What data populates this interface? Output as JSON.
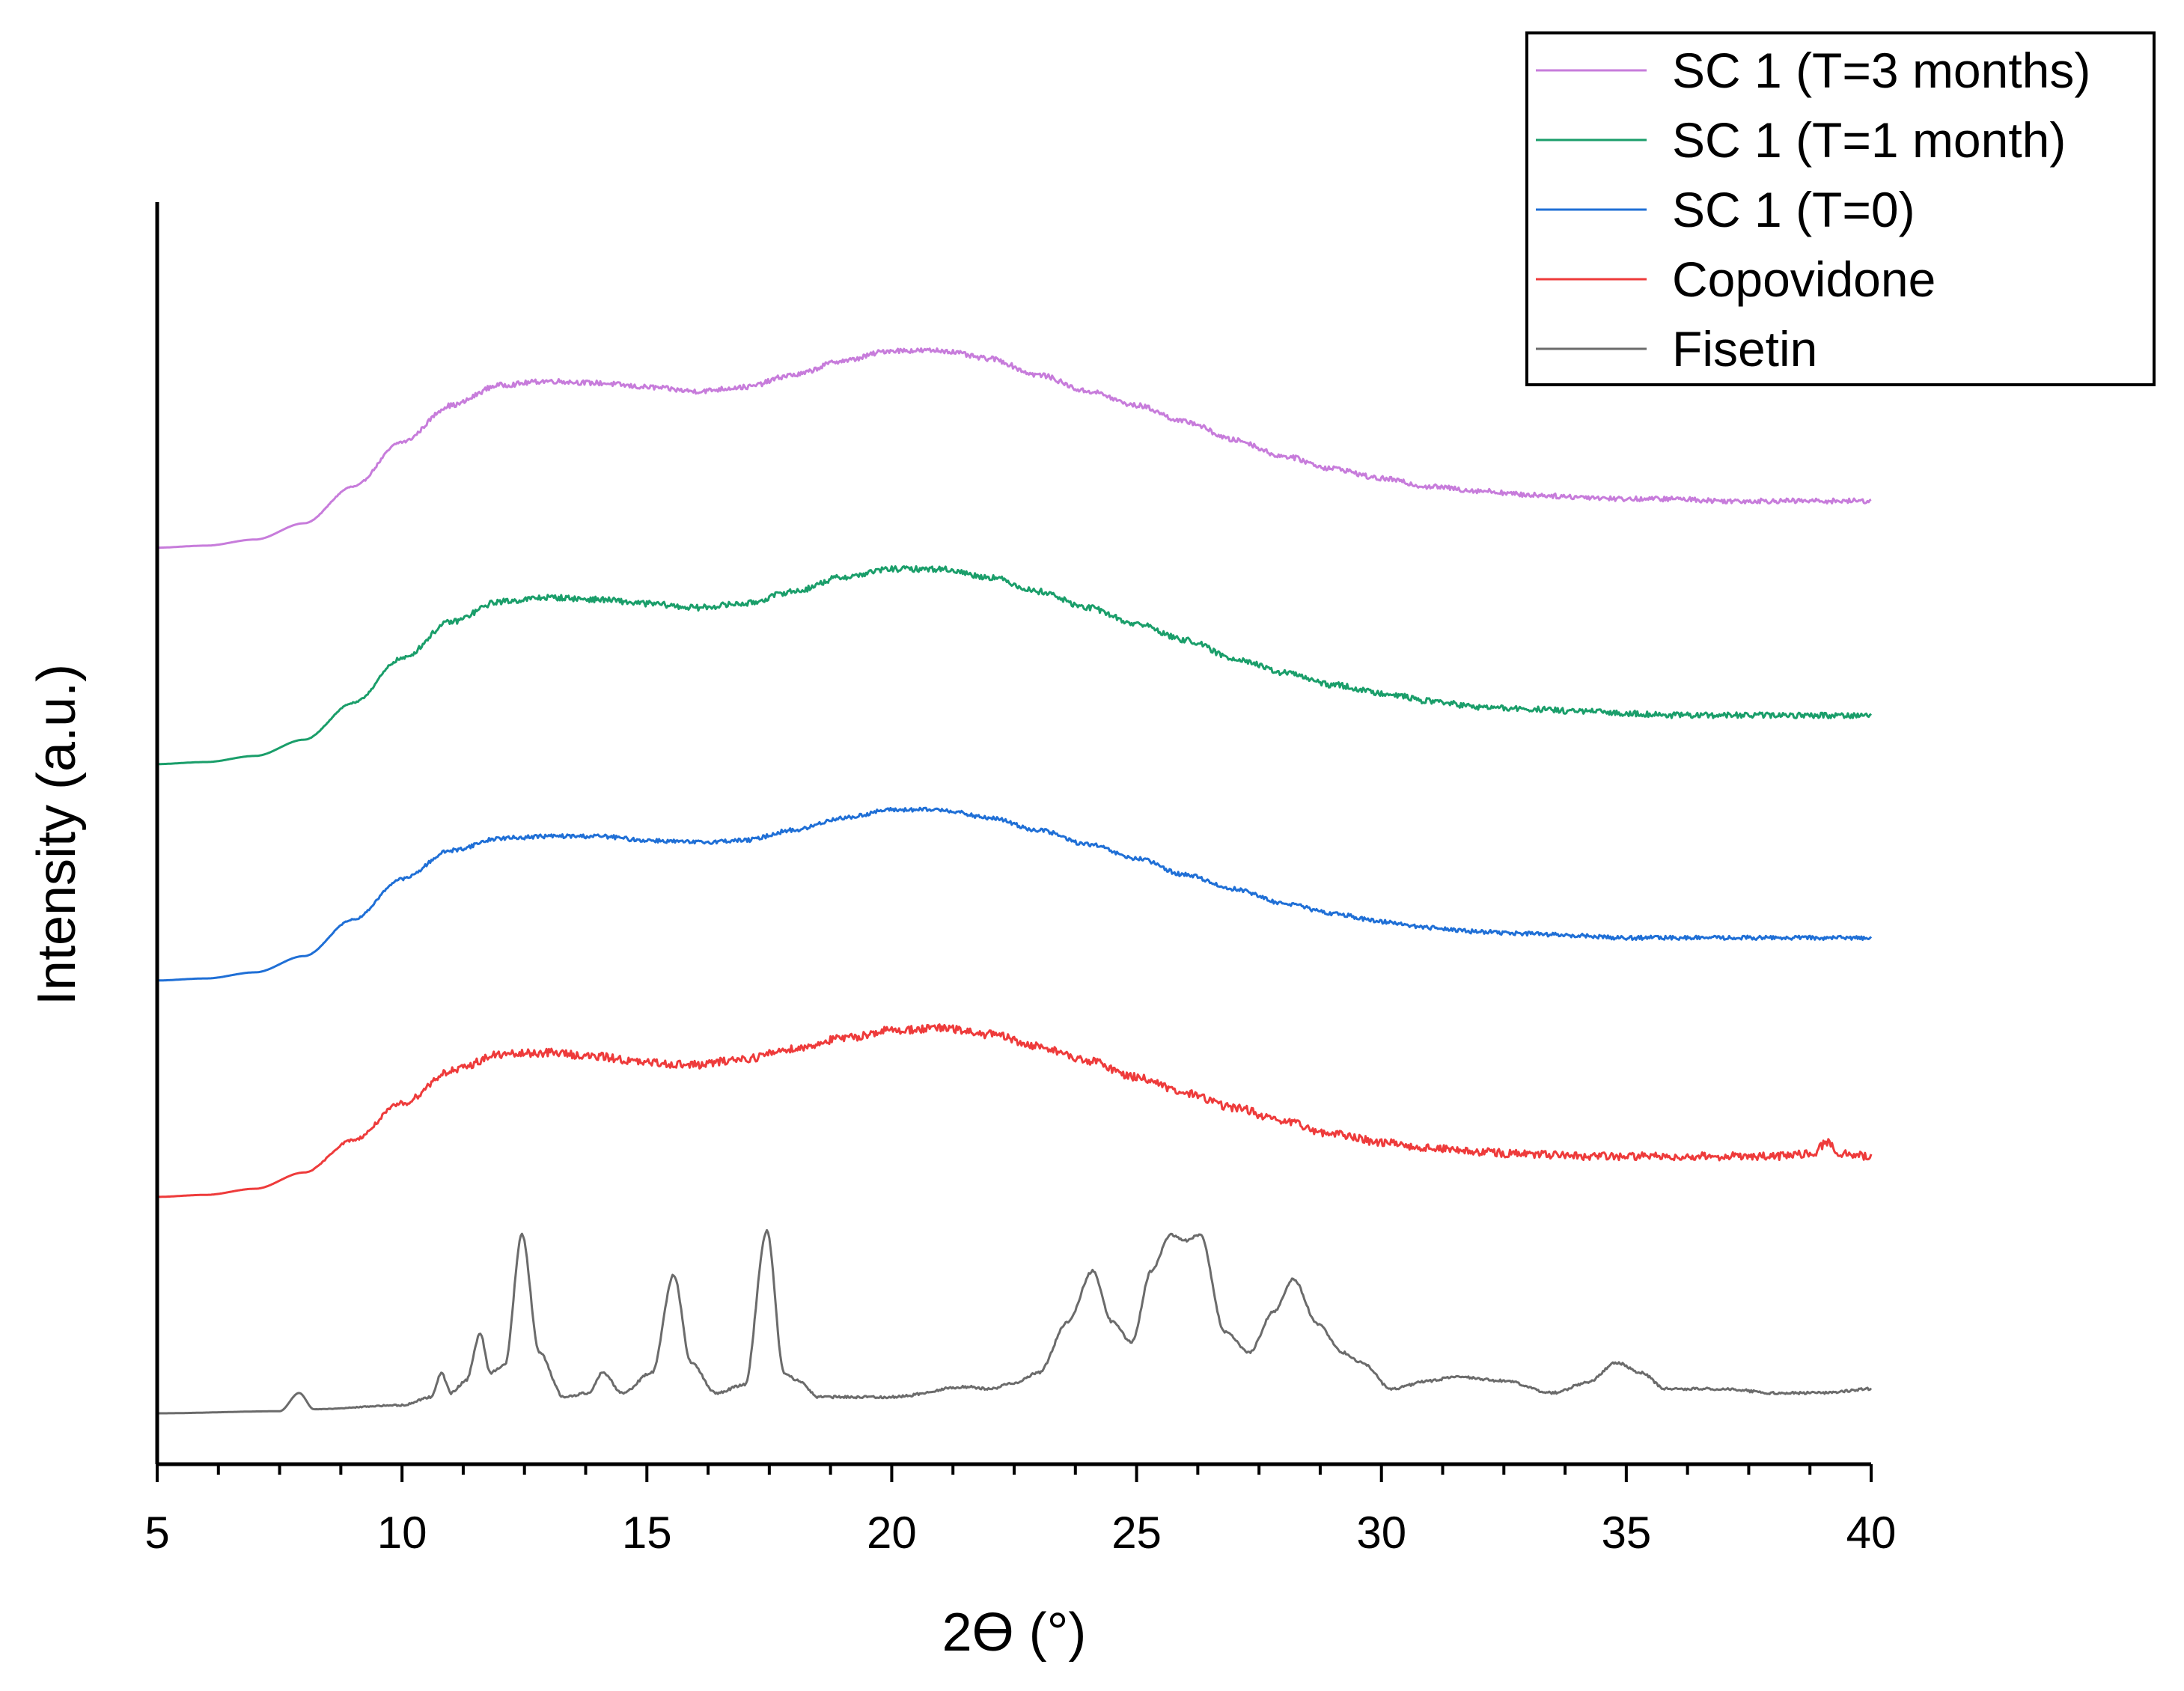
{
  "chart_data": {
    "type": "line",
    "title": "",
    "xlabel": "2ϴ (°)",
    "ylabel": "Intensity (a.u.)",
    "xlim": [
      5,
      40
    ],
    "xticks": [
      5,
      10,
      15,
      20,
      25,
      30,
      35,
      40
    ],
    "y_ticks_shown": false,
    "legend_position": "top-right",
    "series": [
      {
        "name": "SC 1 (T=3 months)",
        "color": "#c77cdb",
        "offset": 4,
        "noise": 0.012,
        "points": [
          [
            5,
            0.0
          ],
          [
            6,
            0.01
          ],
          [
            7,
            0.04
          ],
          [
            8,
            0.12
          ],
          [
            9,
            0.3
          ],
          [
            10,
            0.52
          ],
          [
            11,
            0.7
          ],
          [
            12,
            0.8
          ],
          [
            13,
            0.82
          ],
          [
            14,
            0.81
          ],
          [
            15,
            0.79
          ],
          [
            16,
            0.77
          ],
          [
            17,
            0.79
          ],
          [
            18,
            0.85
          ],
          [
            19,
            0.92
          ],
          [
            20,
            0.97
          ],
          [
            21,
            0.97
          ],
          [
            22,
            0.93
          ],
          [
            23,
            0.85
          ],
          [
            24,
            0.77
          ],
          [
            25,
            0.7
          ],
          [
            26,
            0.62
          ],
          [
            27,
            0.53
          ],
          [
            28,
            0.45
          ],
          [
            29,
            0.39
          ],
          [
            30,
            0.34
          ],
          [
            31,
            0.3
          ],
          [
            32,
            0.28
          ],
          [
            33,
            0.26
          ],
          [
            34,
            0.25
          ],
          [
            35,
            0.24
          ],
          [
            36,
            0.24
          ],
          [
            37,
            0.23
          ],
          [
            38,
            0.23
          ],
          [
            39,
            0.23
          ],
          [
            40,
            0.23
          ]
        ]
      },
      {
        "name": "SC 1 (T=1 month)",
        "color": "#1a9e6a",
        "offset": 3,
        "noise": 0.014,
        "points": [
          [
            5,
            0.0
          ],
          [
            6,
            0.01
          ],
          [
            7,
            0.04
          ],
          [
            8,
            0.12
          ],
          [
            9,
            0.3
          ],
          [
            10,
            0.52
          ],
          [
            11,
            0.7
          ],
          [
            12,
            0.8
          ],
          [
            13,
            0.82
          ],
          [
            14,
            0.81
          ],
          [
            15,
            0.79
          ],
          [
            16,
            0.77
          ],
          [
            17,
            0.79
          ],
          [
            18,
            0.85
          ],
          [
            19,
            0.92
          ],
          [
            20,
            0.96
          ],
          [
            21,
            0.96
          ],
          [
            22,
            0.92
          ],
          [
            23,
            0.85
          ],
          [
            24,
            0.77
          ],
          [
            25,
            0.69
          ],
          [
            26,
            0.61
          ],
          [
            27,
            0.52
          ],
          [
            28,
            0.45
          ],
          [
            29,
            0.39
          ],
          [
            30,
            0.35
          ],
          [
            31,
            0.31
          ],
          [
            32,
            0.28
          ],
          [
            33,
            0.27
          ],
          [
            34,
            0.26
          ],
          [
            35,
            0.25
          ],
          [
            36,
            0.24
          ],
          [
            37,
            0.24
          ],
          [
            38,
            0.24
          ],
          [
            39,
            0.24
          ],
          [
            40,
            0.24
          ]
        ]
      },
      {
        "name": "SC 1 (T=0)",
        "color": "#1f6fd6",
        "offset": 2,
        "noise": 0.01,
        "points": [
          [
            5,
            0.0
          ],
          [
            6,
            0.01
          ],
          [
            7,
            0.04
          ],
          [
            8,
            0.12
          ],
          [
            9,
            0.3
          ],
          [
            10,
            0.5
          ],
          [
            11,
            0.64
          ],
          [
            12,
            0.7
          ],
          [
            13,
            0.71
          ],
          [
            14,
            0.71
          ],
          [
            15,
            0.69
          ],
          [
            16,
            0.68
          ],
          [
            17,
            0.69
          ],
          [
            18,
            0.74
          ],
          [
            19,
            0.8
          ],
          [
            20,
            0.84
          ],
          [
            21,
            0.84
          ],
          [
            22,
            0.8
          ],
          [
            23,
            0.74
          ],
          [
            24,
            0.67
          ],
          [
            25,
            0.6
          ],
          [
            26,
            0.52
          ],
          [
            27,
            0.45
          ],
          [
            28,
            0.38
          ],
          [
            29,
            0.33
          ],
          [
            30,
            0.29
          ],
          [
            31,
            0.26
          ],
          [
            32,
            0.24
          ],
          [
            33,
            0.23
          ],
          [
            34,
            0.22
          ],
          [
            35,
            0.21
          ],
          [
            36,
            0.21
          ],
          [
            37,
            0.21
          ],
          [
            38,
            0.21
          ],
          [
            39,
            0.21
          ],
          [
            40,
            0.21
          ]
        ]
      },
      {
        "name": "Copovidone",
        "color": "#ee3b3b",
        "offset": 1,
        "noise": 0.02,
        "points": [
          [
            5,
            0.0
          ],
          [
            6,
            0.01
          ],
          [
            7,
            0.04
          ],
          [
            8,
            0.12
          ],
          [
            9,
            0.28
          ],
          [
            10,
            0.46
          ],
          [
            11,
            0.62
          ],
          [
            12,
            0.7
          ],
          [
            13,
            0.71
          ],
          [
            14,
            0.69
          ],
          [
            15,
            0.66
          ],
          [
            16,
            0.65
          ],
          [
            17,
            0.68
          ],
          [
            18,
            0.73
          ],
          [
            19,
            0.78
          ],
          [
            20,
            0.82
          ],
          [
            21,
            0.83
          ],
          [
            22,
            0.8
          ],
          [
            23,
            0.74
          ],
          [
            24,
            0.67
          ],
          [
            25,
            0.59
          ],
          [
            26,
            0.51
          ],
          [
            27,
            0.44
          ],
          [
            28,
            0.37
          ],
          [
            29,
            0.31
          ],
          [
            30,
            0.27
          ],
          [
            31,
            0.24
          ],
          [
            32,
            0.22
          ],
          [
            33,
            0.21
          ],
          [
            34,
            0.2
          ],
          [
            35,
            0.2
          ],
          [
            36,
            0.2
          ],
          [
            37,
            0.2
          ],
          [
            38,
            0.2
          ],
          [
            38.8,
            0.21
          ],
          [
            39.1,
            0.27
          ],
          [
            39.4,
            0.21
          ],
          [
            40,
            0.2
          ]
        ]
      },
      {
        "name": "Fisetin",
        "color": "#6b6b6b",
        "offset": 0,
        "noise": 0.006,
        "points": [
          [
            5,
            0.0
          ],
          [
            7.5,
            0.01
          ],
          [
            7.9,
            0.1
          ],
          [
            8.2,
            0.02
          ],
          [
            10,
            0.04
          ],
          [
            10.6,
            0.08
          ],
          [
            10.8,
            0.2
          ],
          [
            11.0,
            0.1
          ],
          [
            11.3,
            0.16
          ],
          [
            11.6,
            0.39
          ],
          [
            11.8,
            0.2
          ],
          [
            12.1,
            0.24
          ],
          [
            12.45,
            0.88
          ],
          [
            12.8,
            0.3
          ],
          [
            13.3,
            0.08
          ],
          [
            13.8,
            0.1
          ],
          [
            14.1,
            0.2
          ],
          [
            14.5,
            0.1
          ],
          [
            15.1,
            0.2
          ],
          [
            15.55,
            0.68
          ],
          [
            15.9,
            0.25
          ],
          [
            16.4,
            0.1
          ],
          [
            17.0,
            0.14
          ],
          [
            17.45,
            0.9
          ],
          [
            17.8,
            0.2
          ],
          [
            18.1,
            0.16
          ],
          [
            18.5,
            0.08
          ],
          [
            20,
            0.08
          ],
          [
            21.5,
            0.13
          ],
          [
            22,
            0.12
          ],
          [
            22.5,
            0.15
          ],
          [
            23,
            0.2
          ],
          [
            23.6,
            0.45
          ],
          [
            24.1,
            0.7
          ],
          [
            24.5,
            0.45
          ],
          [
            24.9,
            0.35
          ],
          [
            25.3,
            0.7
          ],
          [
            25.7,
            0.88
          ],
          [
            26.0,
            0.85
          ],
          [
            26.3,
            0.88
          ],
          [
            26.8,
            0.4
          ],
          [
            27.3,
            0.3
          ],
          [
            27.8,
            0.5
          ],
          [
            28.2,
            0.66
          ],
          [
            28.7,
            0.44
          ],
          [
            29.2,
            0.3
          ],
          [
            29.6,
            0.25
          ],
          [
            30.2,
            0.12
          ],
          [
            31,
            0.16
          ],
          [
            31.5,
            0.18
          ],
          [
            32.5,
            0.16
          ],
          [
            33.5,
            0.1
          ],
          [
            34.2,
            0.15
          ],
          [
            34.8,
            0.25
          ],
          [
            35.3,
            0.2
          ],
          [
            35.8,
            0.12
          ],
          [
            37,
            0.12
          ],
          [
            38,
            0.1
          ],
          [
            39,
            0.1
          ],
          [
            40,
            0.12
          ]
        ]
      }
    ]
  }
}
